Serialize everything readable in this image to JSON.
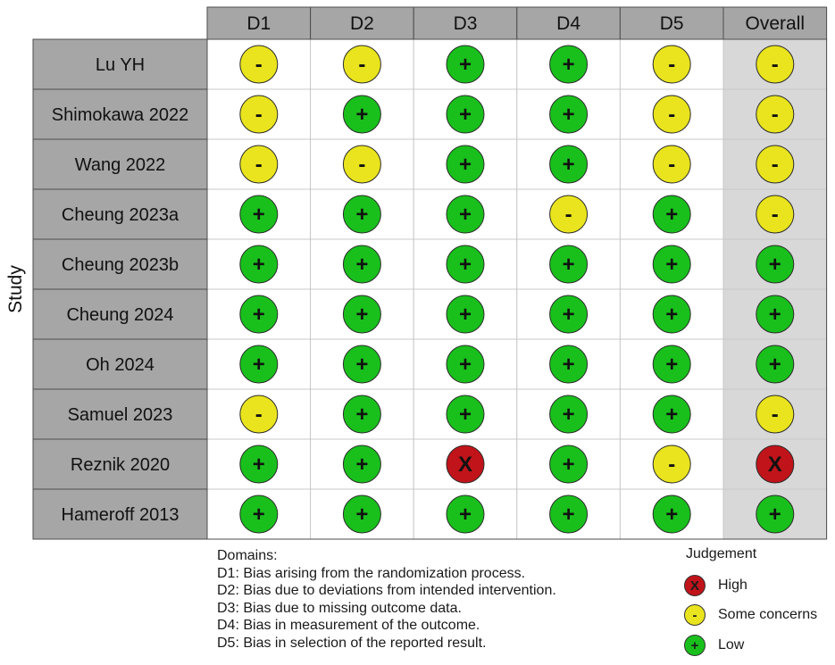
{
  "chart_data": {
    "type": "table",
    "ylabel": "Study",
    "columns": [
      "D1",
      "D2",
      "D3",
      "D4",
      "D5",
      "Overall"
    ],
    "rows": [
      {
        "study": "Lu YH",
        "judgements": [
          "some",
          "some",
          "low",
          "low",
          "some",
          "some"
        ]
      },
      {
        "study": "Shimokawa 2022",
        "judgements": [
          "some",
          "low",
          "low",
          "low",
          "some",
          "some"
        ]
      },
      {
        "study": "Wang 2022",
        "judgements": [
          "some",
          "some",
          "low",
          "low",
          "some",
          "some"
        ]
      },
      {
        "study": "Cheung 2023a",
        "judgements": [
          "low",
          "low",
          "low",
          "some",
          "low",
          "some"
        ]
      },
      {
        "study": "Cheung 2023b",
        "judgements": [
          "low",
          "low",
          "low",
          "low",
          "low",
          "low"
        ]
      },
      {
        "study": "Cheung 2024",
        "judgements": [
          "low",
          "low",
          "low",
          "low",
          "low",
          "low"
        ]
      },
      {
        "study": "Oh 2024",
        "judgements": [
          "low",
          "low",
          "low",
          "low",
          "low",
          "low"
        ]
      },
      {
        "study": "Samuel 2023",
        "judgements": [
          "some",
          "low",
          "low",
          "low",
          "low",
          "some"
        ]
      },
      {
        "study": "Reznik 2020",
        "judgements": [
          "low",
          "low",
          "high",
          "low",
          "some",
          "high"
        ]
      },
      {
        "study": "Hameroff 2013",
        "judgements": [
          "low",
          "low",
          "low",
          "low",
          "low",
          "low"
        ]
      }
    ],
    "judgement_levels": {
      "high": {
        "symbol": "X",
        "label": "High",
        "color": "#c0141a"
      },
      "some": {
        "symbol": "-",
        "label": "Some concerns",
        "color": "#e9e41d"
      },
      "low": {
        "symbol": "+",
        "label": "Low",
        "color": "#19c01c"
      }
    },
    "domains_title": "Domains:",
    "domains": [
      "D1: Bias arising from the randomization process.",
      "D2: Bias due to deviations from intended intervention.",
      "D3: Bias due to missing outcome data.",
      "D4: Bias in measurement of the outcome.",
      "D5: Bias in selection of the reported result."
    ],
    "judgement_title": "Judgement",
    "colors": {
      "header_fill": "#a6a6a6",
      "row_label_fill": "#a6a6a6",
      "overall_fill": "#d8d8d8",
      "cell_fill": "#ffffff",
      "grid_line": "#c8c8c8"
    }
  }
}
